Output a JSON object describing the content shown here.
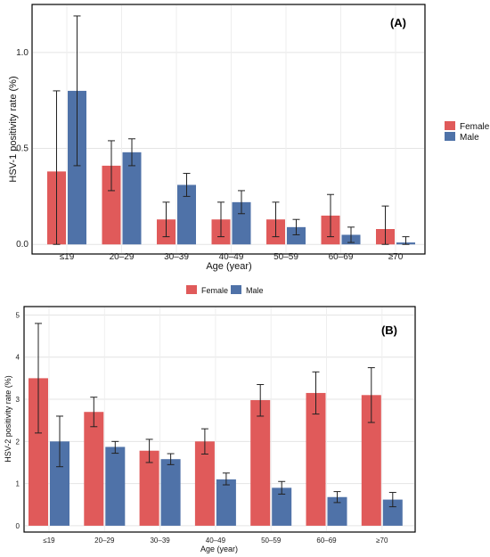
{
  "chart_data": [
    {
      "type": "bar",
      "panel_label": "(A)",
      "categories": [
        "≤19",
        "20–29",
        "30–39",
        "40–49",
        "50–59",
        "60–69",
        "≥70"
      ],
      "series": [
        {
          "name": "Female",
          "color": "#e05a5a",
          "values": [
            0.38,
            0.41,
            0.13,
            0.13,
            0.13,
            0.15,
            0.08
          ],
          "ci_low": [
            0.0,
            0.28,
            0.04,
            0.04,
            0.04,
            0.04,
            0.0
          ],
          "ci_high": [
            0.8,
            0.54,
            0.22,
            0.22,
            0.22,
            0.26,
            0.2
          ]
        },
        {
          "name": "Male",
          "color": "#4f72a8",
          "values": [
            0.8,
            0.48,
            0.31,
            0.22,
            0.09,
            0.05,
            0.01
          ],
          "ci_low": [
            0.41,
            0.41,
            0.25,
            0.16,
            0.05,
            0.01,
            0.0
          ],
          "ci_high": [
            1.19,
            0.55,
            0.37,
            0.28,
            0.13,
            0.09,
            0.04
          ]
        }
      ],
      "xlabel": "Age (year)",
      "ylabel": "HSV-1 positivity rate (%)",
      "ylim": [
        -0.05,
        1.25
      ],
      "yticks": [
        "0.0",
        "0.5",
        "1.0"
      ],
      "legend_placement": "right",
      "grid": true
    },
    {
      "type": "bar",
      "panel_label": "(B)",
      "categories": [
        "≤19",
        "20–29",
        "30–39",
        "40–49",
        "50–59",
        "60–69",
        "≥70"
      ],
      "series": [
        {
          "name": "Female",
          "color": "#e05a5a",
          "values": [
            3.5,
            2.7,
            1.78,
            2.0,
            2.98,
            3.15,
            3.1
          ],
          "ci_low": [
            2.2,
            2.35,
            1.5,
            1.7,
            2.6,
            2.65,
            2.45
          ],
          "ci_high": [
            4.8,
            3.05,
            2.05,
            2.3,
            3.35,
            3.65,
            3.75
          ]
        },
        {
          "name": "Male",
          "color": "#4f72a8",
          "values": [
            2.0,
            1.87,
            1.58,
            1.1,
            0.9,
            0.68,
            0.62
          ],
          "ci_low": [
            1.4,
            1.72,
            1.45,
            0.97,
            0.75,
            0.55,
            0.45
          ],
          "ci_high": [
            2.6,
            2.0,
            1.71,
            1.25,
            1.05,
            0.81,
            0.79
          ]
        }
      ],
      "xlabel": "Age (year)",
      "ylabel": "HSV-2 positivity rate (%)",
      "ylim": [
        -0.15,
        5.2
      ],
      "yticks": [
        "0",
        "1",
        "2",
        "3",
        "4",
        "5"
      ],
      "legend_placement": "top",
      "grid": true
    }
  ]
}
